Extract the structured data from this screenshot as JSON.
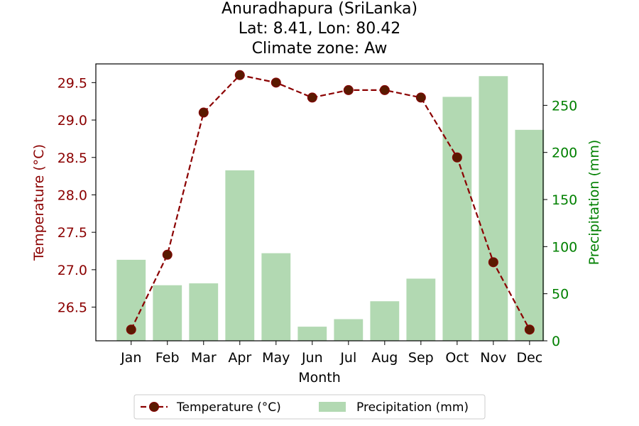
{
  "chart_data": {
    "type": "bar+line",
    "title_lines": [
      "Anuradhapura (SriLanka)",
      "Lat: 8.41, Lon: 80.42",
      "Climate zone: Aw"
    ],
    "xlabel": "Month",
    "ylabel_left": "Temperature (°C)",
    "ylabel_right": "Precipitation (mm)",
    "categories": [
      "Jan",
      "Feb",
      "Mar",
      "Apr",
      "May",
      "Jun",
      "Jul",
      "Aug",
      "Sep",
      "Oct",
      "Nov",
      "Dec"
    ],
    "series": [
      {
        "name": "Temperature (°C)",
        "kind": "line",
        "axis": "left",
        "values": [
          26.2,
          27.2,
          29.1,
          29.6,
          29.5,
          29.3,
          29.4,
          29.4,
          29.3,
          28.5,
          27.1,
          26.2
        ],
        "color": "#8b0000",
        "marker_color": "#5a1a00"
      },
      {
        "name": "Precipitation (mm)",
        "kind": "bar",
        "axis": "right",
        "values": [
          86,
          59,
          61,
          181,
          93,
          15,
          23,
          42,
          66,
          259,
          281,
          224
        ],
        "color": "#b2d9b2"
      }
    ],
    "ylim_left": [
      26.05,
      29.75
    ],
    "yticks_left": [
      "26.5",
      "27.0",
      "27.5",
      "28.0",
      "28.5",
      "29.0",
      "29.5"
    ],
    "ylim_right": [
      0,
      294
    ],
    "yticks_right": [
      "0",
      "50",
      "100",
      "150",
      "200",
      "250"
    ],
    "left_axis_color": "#8b0000",
    "right_axis_color": "#008000",
    "legend_placement": "bottom-center",
    "grid": false
  }
}
